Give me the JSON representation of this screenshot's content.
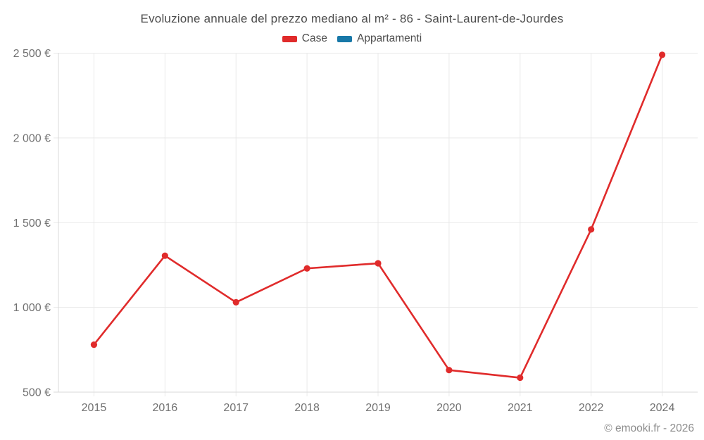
{
  "chart_data": {
    "type": "line",
    "title": "Evoluzione annuale del prezzo mediano al m² - 86 - Saint-Laurent-de-Jourdes",
    "xlabel": "",
    "ylabel": "",
    "categories": [
      "2015",
      "2016",
      "2017",
      "2018",
      "2019",
      "2020",
      "2021",
      "2022",
      "2024"
    ],
    "series": [
      {
        "name": "Case",
        "color": "#e02b2b",
        "values": [
          780,
          1305,
          1030,
          1230,
          1260,
          630,
          585,
          1460,
          2490
        ]
      },
      {
        "name": "Appartamenti",
        "color": "#1878a8",
        "values": []
      }
    ],
    "ylim": [
      500,
      2500
    ],
    "y_ticks": [
      {
        "value": 500,
        "label": "500 €"
      },
      {
        "value": 1000,
        "label": "1 000 €"
      },
      {
        "value": 1500,
        "label": "1 500 €"
      },
      {
        "value": 2000,
        "label": "2 000 €"
      },
      {
        "value": 2500,
        "label": "2 500 €"
      }
    ],
    "grid": true,
    "legend_position": "top",
    "currency": "€",
    "colors": {
      "grid": "#e9e9e9",
      "axis_line": "#d9d9d9",
      "axis_text": "#717171",
      "title_text": "#4c4c4c"
    }
  },
  "footer": {
    "text": "© emooki.fr - 2026"
  }
}
